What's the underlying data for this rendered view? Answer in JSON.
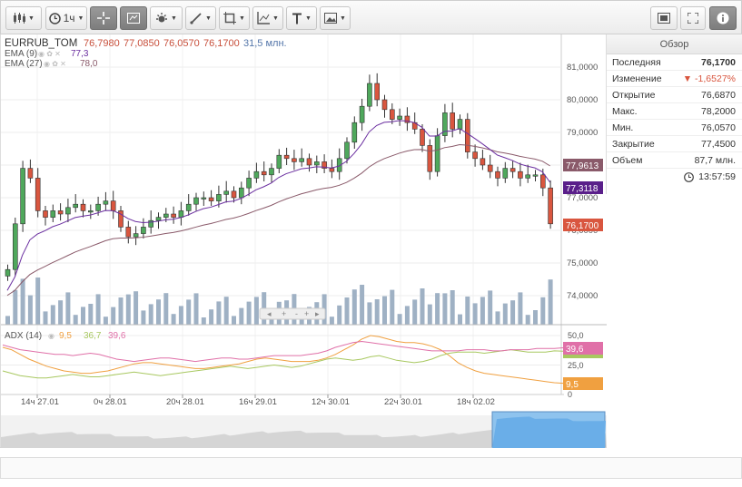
{
  "toolbar": {
    "chart_type_icon": "candlestick-icon",
    "interval_label": "1ч",
    "tools": [
      "crosshair-icon",
      "indicators-icon",
      "settings-sun-icon",
      "draw-line-icon",
      "shapes-icon",
      "analysis-icon",
      "text-icon",
      "image-icon"
    ],
    "right_tools": [
      "screenshot-icon",
      "fullscreen-icon",
      "info-icon"
    ]
  },
  "legend": {
    "symbol": "EURRUB_TOM",
    "open": "76,7980",
    "high": "77,0850",
    "low": "76,0570",
    "close": "76,1700",
    "volume": "31,5 млн.",
    "ema9_label": "EMA (9)",
    "ema9_value": "77,3",
    "ema27_label": "EMA (27)",
    "ema27_value": "78,0"
  },
  "price_axis": {
    "ticks": [
      "81,0000",
      "80,0000",
      "79,0000",
      "78,0000",
      "77,0000",
      "76,0000",
      "75,0000",
      "74,0000"
    ],
    "badge_ema27": "77,9613",
    "badge_ema9": "77,3118",
    "badge_last": "76,1700"
  },
  "adx": {
    "label": "ADX (14)",
    "v1": "9,5",
    "v2": "36,7",
    "v3": "39,6",
    "ticks": [
      "50,0",
      "25,0",
      "0"
    ],
    "badge_top": "39,6",
    "badge_bottom": "9,5"
  },
  "time_axis": [
    "14ч 27.01",
    "0ч 28.01",
    "20ч 28.01",
    "16ч 29.01",
    "12ч 30.01",
    "22ч 30.01",
    "18ч 02.02"
  ],
  "nav_buttons": [
    "◂",
    "+",
    "-",
    "+",
    "▸"
  ],
  "colors": {
    "up": "#4fa85c",
    "down": "#d9563f",
    "ema9": "#6b2fa0",
    "ema27": "#8a5a6a",
    "volume": "#9fb1c4"
  },
  "summary": {
    "title": "Обзор",
    "rows": [
      {
        "label": "Последняя",
        "value": "76,1700"
      },
      {
        "label": "Изменение",
        "value": "▼ -1,6527%"
      },
      {
        "label": "Открытие",
        "value": "76,6870"
      },
      {
        "label": "Макс.",
        "value": "78,2000"
      },
      {
        "label": "Мин.",
        "value": "76,0570"
      },
      {
        "label": "Закрытие",
        "value": "77,4500"
      },
      {
        "label": "Объем",
        "value": "87,7 млн."
      }
    ],
    "time": "13:57:59"
  }
}
